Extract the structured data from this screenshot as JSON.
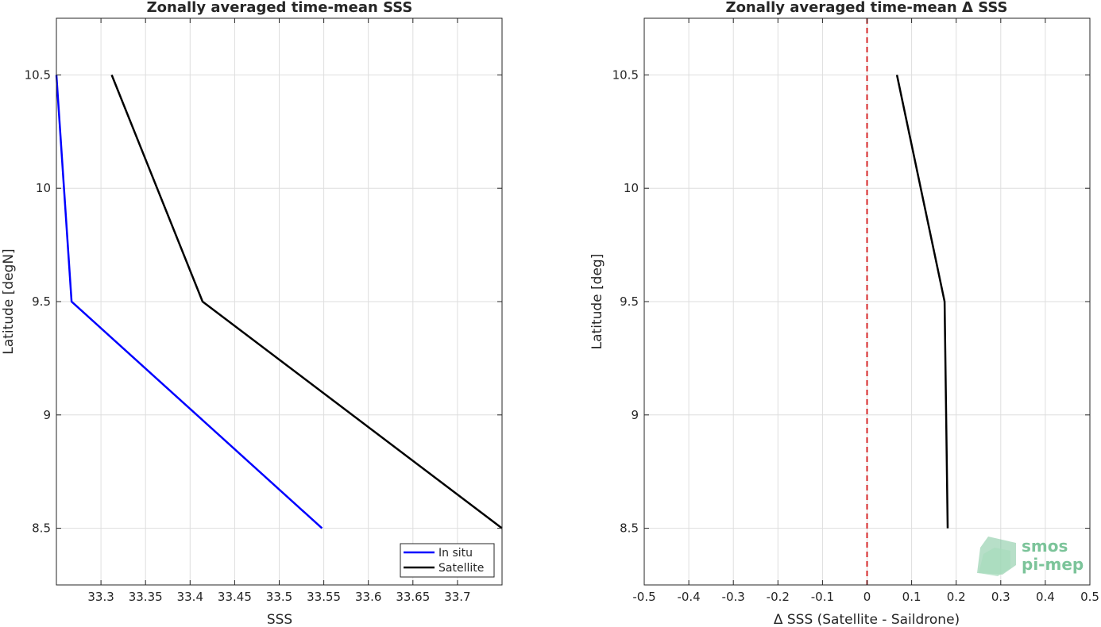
{
  "chart_data": [
    {
      "type": "line",
      "title": "Zonally averaged time-mean SSS",
      "xlabel": "SSS",
      "ylabel": "Latitude [degN]",
      "xlim": [
        33.25,
        33.75
      ],
      "ylim": [
        8.25,
        10.75
      ],
      "xticks": [
        33.3,
        33.35,
        33.4,
        33.45,
        33.5,
        33.55,
        33.6,
        33.65,
        33.7
      ],
      "xtick_labels": [
        "33.3",
        "33.35",
        "33.4",
        "33.45",
        "33.5",
        "33.55",
        "33.6",
        "33.65",
        "33.7"
      ],
      "yticks": [
        8.5,
        9,
        9.5,
        10,
        10.5
      ],
      "ytick_labels": [
        "8.5",
        "9",
        "9.5",
        "10",
        "10.5"
      ],
      "grid": true,
      "legend_position": "bottom-right",
      "series": [
        {
          "name": "In situ",
          "color": "#0000ff",
          "x": [
            33.25,
            33.267,
            33.548
          ],
          "y": [
            10.5,
            9.5,
            8.5
          ]
        },
        {
          "name": "Satellite",
          "color": "#000000",
          "x": [
            33.312,
            33.414,
            33.75
          ],
          "y": [
            10.5,
            9.5,
            8.5
          ]
        }
      ]
    },
    {
      "type": "line",
      "title": "Zonally averaged time-mean Δ SSS",
      "xlabel": "Δ SSS (Satellite - Saildrone)",
      "ylabel": "Latitude [deg]",
      "xlim": [
        -0.5,
        0.5
      ],
      "ylim": [
        8.25,
        10.75
      ],
      "xticks": [
        -0.5,
        -0.4,
        -0.3,
        -0.2,
        -0.1,
        0,
        0.1,
        0.2,
        0.3,
        0.4,
        0.5
      ],
      "xtick_labels": [
        "-0.5",
        "-0.4",
        "-0.3",
        "-0.2",
        "-0.1",
        "0",
        "0.1",
        "0.2",
        "0.3",
        "0.4",
        "0.5"
      ],
      "yticks": [
        8.5,
        9,
        9.5,
        10,
        10.5
      ],
      "ytick_labels": [
        "8.5",
        "9",
        "9.5",
        "10",
        "10.5"
      ],
      "grid": true,
      "reference_line": {
        "x": 0,
        "color": "#d62728",
        "style": "dashed"
      },
      "series": [
        {
          "name": "",
          "color": "#000000",
          "x": [
            0.067,
            0.174,
            0.181
          ],
          "y": [
            10.5,
            9.5,
            8.5
          ]
        }
      ]
    }
  ],
  "logo": {
    "line1": "smos",
    "line2": "pi-mep",
    "color": "#7cc49a"
  }
}
